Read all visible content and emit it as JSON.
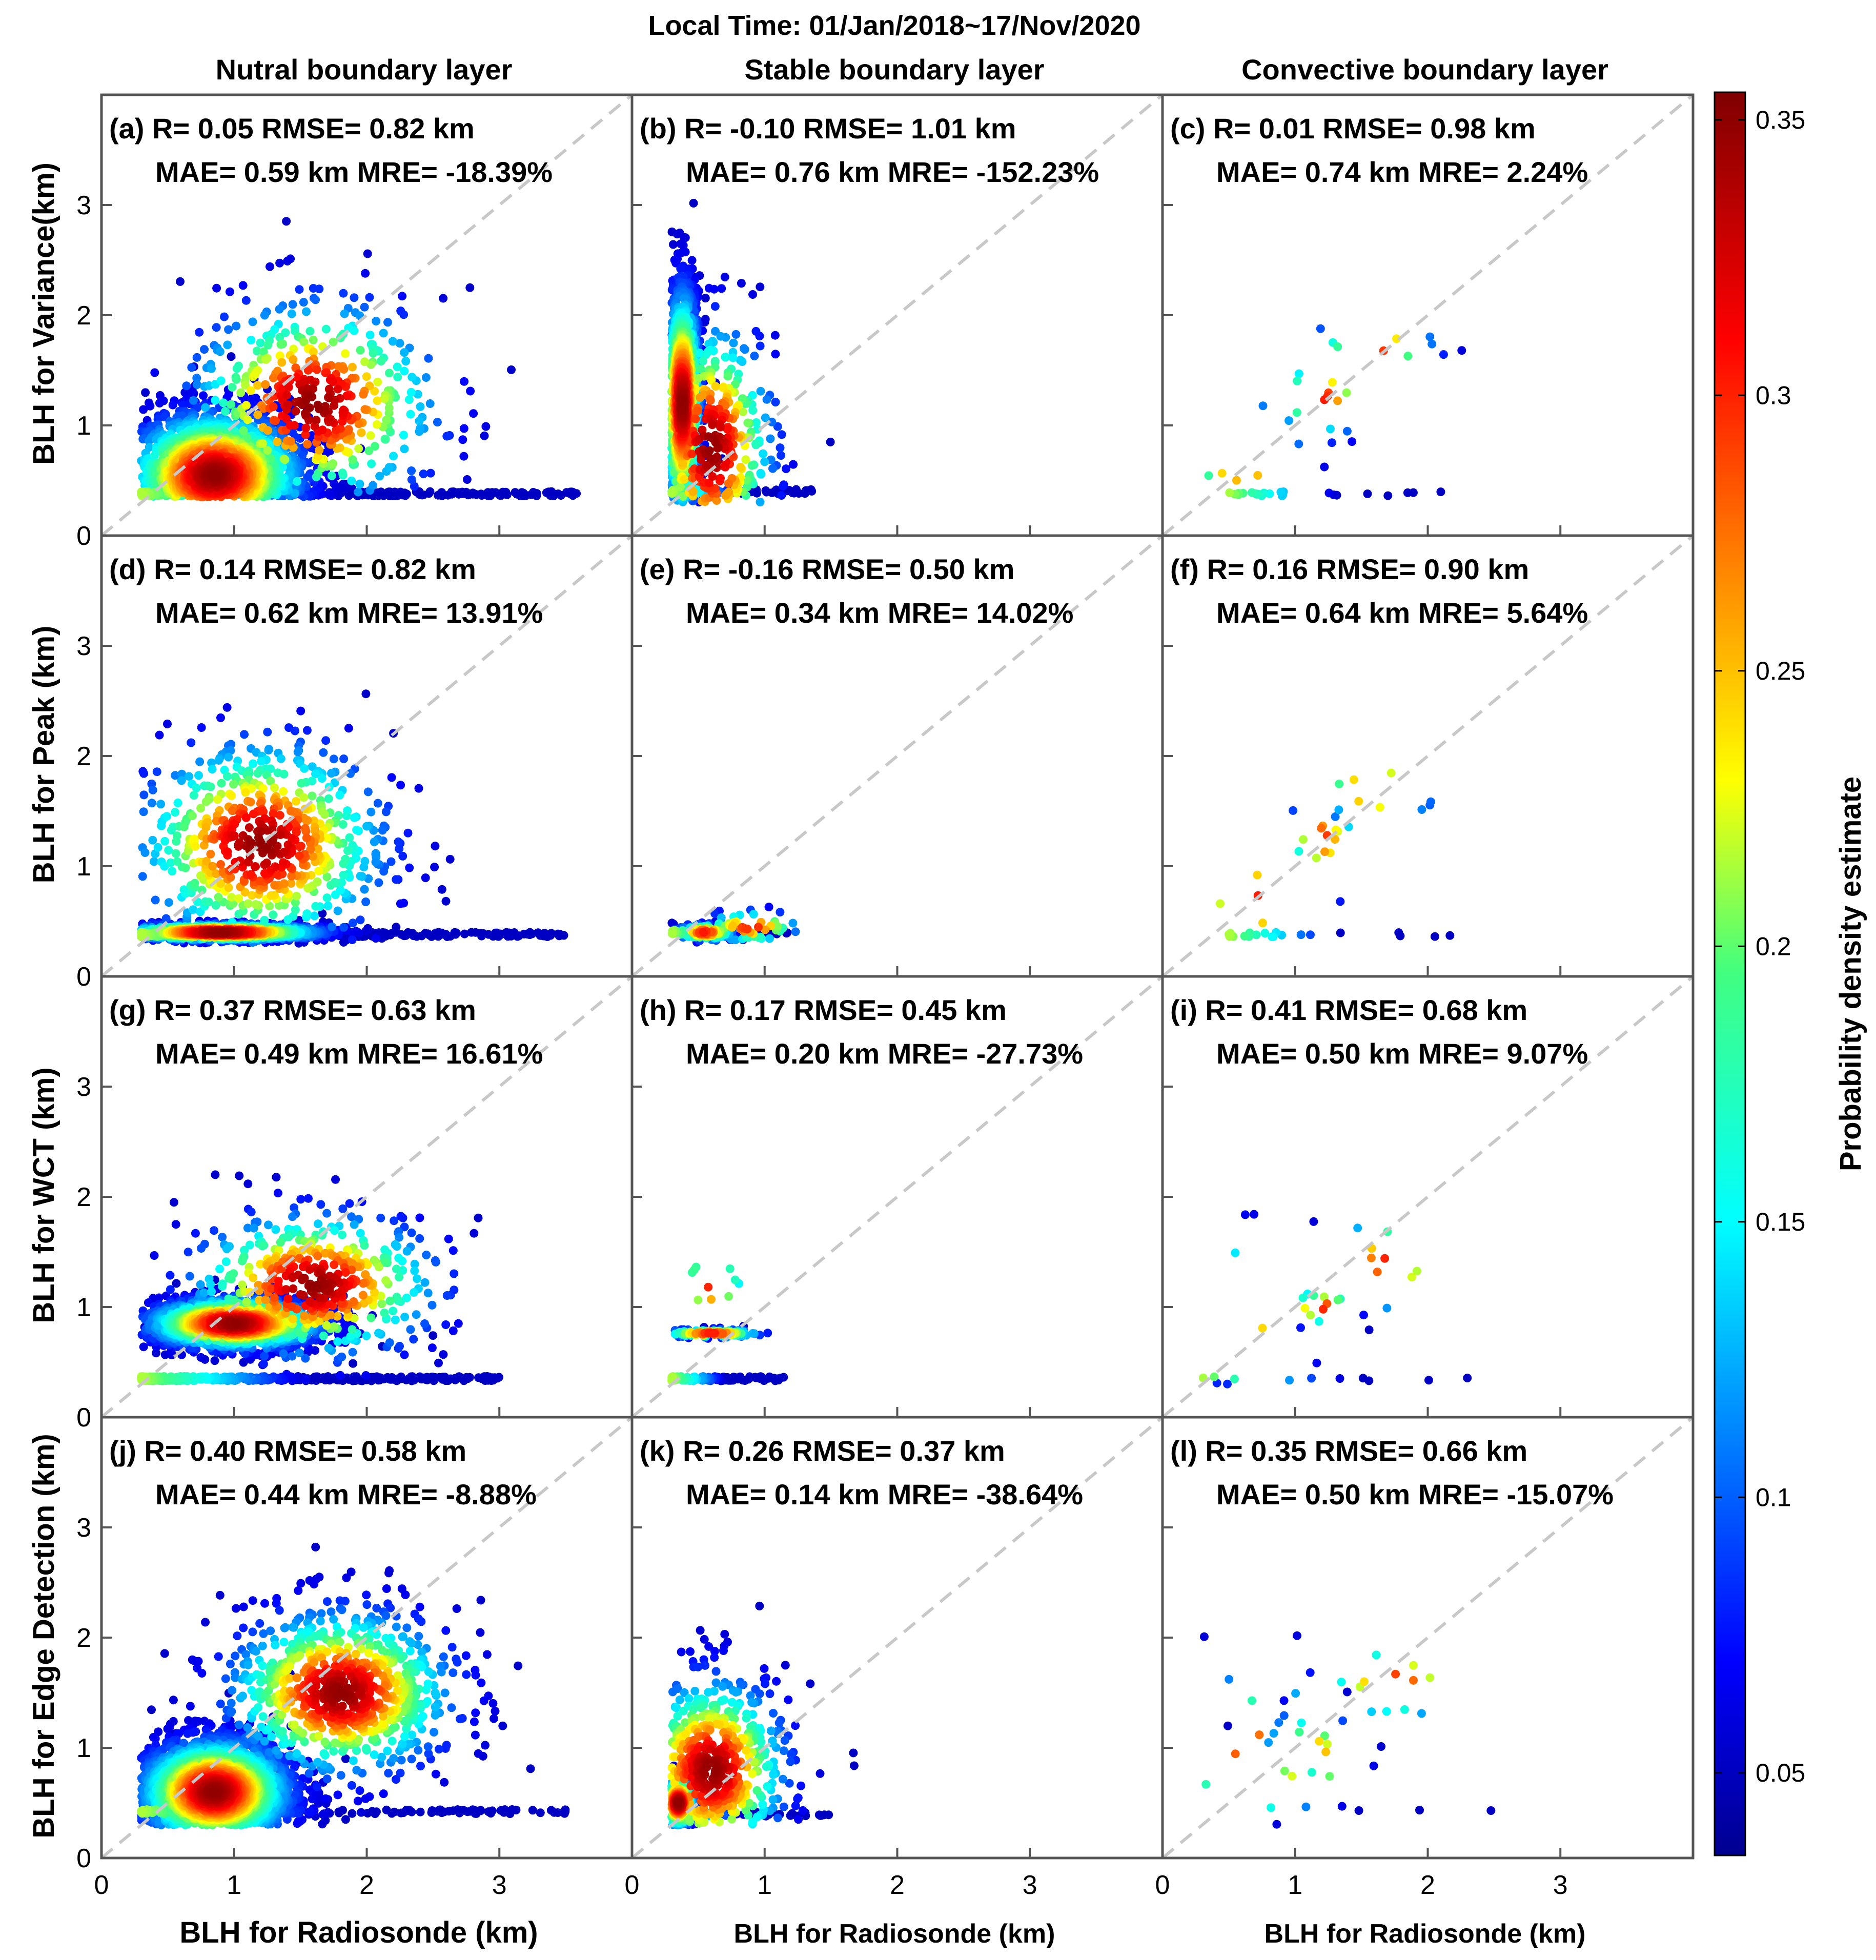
{
  "title": "Local Time: 01/Jan/2018~17/Nov/2020",
  "columns": [
    "Nutral boundary layer",
    "Stable boundary layer",
    "Convective boundary layer"
  ],
  "row_ylabels": [
    "BLH for Variance(km)",
    "BLH for Peak (km)",
    "BLH for WCT (km)",
    "BLH for Edge Detection (km)"
  ],
  "xlabel": "BLH for Radiosonde (km)",
  "colorbar": {
    "label": "Probability density estimate",
    "range": [
      0.035,
      0.355
    ],
    "ticks": [
      "0.05",
      "0.1",
      "0.15",
      "0.2",
      "0.25",
      "0.3",
      "0.35"
    ],
    "colormap": "jet"
  },
  "chart_data": [
    {
      "type": "scatter",
      "panel": "(a)",
      "line1": "R= 0.05  RMSE= 0.82 km",
      "line2": "MAE= 0.59 km MRE= -18.39%",
      "xlim": [
        0,
        4
      ],
      "ylim": [
        0,
        4
      ],
      "xticks": [
        "0",
        "1",
        "2",
        "3"
      ],
      "yticks": [
        "0",
        "1",
        "2",
        "3"
      ],
      "density_clusters": [
        {
          "cx": 0.85,
          "cy": 0.55,
          "sx": 0.35,
          "sy": 0.3,
          "n": 2600
        },
        {
          "cx": 1.6,
          "cy": 1.2,
          "sx": 0.5,
          "sy": 0.5,
          "n": 500
        }
      ],
      "baseline": {
        "y": 0.38,
        "x_from": 0.3,
        "x_to": 3.6,
        "n": 320
      },
      "points_range": {
        "x": [
          0.3,
          3.6
        ],
        "y": [
          0.35,
          3.95
        ]
      }
    },
    {
      "type": "scatter",
      "panel": "(b)",
      "line1": "R= -0.10  RMSE= 1.01 km",
      "line2": "MAE= 0.76 km MRE= -152.23%",
      "xlim": [
        0,
        4
      ],
      "ylim": [
        0,
        4
      ],
      "xticks": [
        "0",
        "1",
        "2",
        "3"
      ],
      "yticks": [],
      "density_clusters": [
        {
          "cx": 0.38,
          "cy": 1.2,
          "sx": 0.07,
          "sy": 0.55,
          "n": 1600
        },
        {
          "cx": 0.6,
          "cy": 0.8,
          "sx": 0.25,
          "sy": 0.6,
          "n": 500
        }
      ],
      "baseline": {
        "y": 0.4,
        "x_from": 0.3,
        "x_to": 1.4,
        "n": 120
      },
      "points_range": {
        "x": [
          0.3,
          2.6
        ],
        "y": [
          0.3,
          3.9
        ]
      }
    },
    {
      "type": "scatter",
      "panel": "(c)",
      "line1": "R= 0.01  RMSE= 0.98 km",
      "line2": "MAE= 0.74 km MRE= 2.24%",
      "xlim": [
        0,
        4
      ],
      "ylim": [
        0,
        4
      ],
      "xticks": [
        "0",
        "1",
        "2",
        "3"
      ],
      "yticks": [],
      "density_clusters": [
        {
          "cx": 1.2,
          "cy": 1.25,
          "sx": 0.2,
          "sy": 0.2,
          "n": 14
        },
        {
          "cx": 1.6,
          "cy": 1.7,
          "sx": 0.25,
          "sy": 0.2,
          "n": 10
        },
        {
          "cx": 0.6,
          "cy": 0.7,
          "sx": 0.25,
          "sy": 0.3,
          "n": 8
        }
      ],
      "baseline": {
        "y": 0.38,
        "x_from": 0.5,
        "x_to": 2.3,
        "n": 24
      },
      "points_range": {
        "x": [
          0.3,
          3.1
        ],
        "y": [
          0.3,
          2.5
        ]
      }
    },
    {
      "type": "scatter",
      "panel": "(d)",
      "line1": "R= 0.14  RMSE= 0.82 km",
      "line2": "MAE= 0.62 km MRE= 13.91%",
      "xlim": [
        0,
        4
      ],
      "ylim": [
        0,
        4
      ],
      "xticks": [
        "0",
        "1",
        "2",
        "3"
      ],
      "yticks": [
        "0",
        "1",
        "2",
        "3"
      ],
      "density_clusters": [
        {
          "cx": 0.9,
          "cy": 0.4,
          "sx": 0.4,
          "sy": 0.04,
          "n": 1200
        },
        {
          "cx": 1.2,
          "cy": 1.2,
          "sx": 0.5,
          "sy": 0.5,
          "n": 700
        }
      ],
      "baseline": {
        "y": 0.38,
        "x_from": 0.3,
        "x_to": 3.5,
        "n": 300
      },
      "points_range": {
        "x": [
          0.3,
          3.5
        ],
        "y": [
          0.3,
          3.0
        ]
      }
    },
    {
      "type": "scatter",
      "panel": "(e)",
      "line1": "R= -0.16  RMSE= 0.50 km",
      "line2": "MAE= 0.34 km MRE= 14.02%",
      "xlim": [
        0,
        4
      ],
      "ylim": [
        0,
        4
      ],
      "xticks": [
        "0",
        "1",
        "2",
        "3"
      ],
      "yticks": [],
      "density_clusters": [
        {
          "cx": 0.55,
          "cy": 0.4,
          "sx": 0.12,
          "sy": 0.04,
          "n": 140
        },
        {
          "cx": 0.9,
          "cy": 0.45,
          "sx": 0.2,
          "sy": 0.08,
          "n": 60
        }
      ],
      "baseline": {
        "y": 0.4,
        "x_from": 0.3,
        "x_to": 1.2,
        "n": 60
      },
      "points_range": {
        "x": [
          0.3,
          1.25
        ],
        "y": [
          0.3,
          3.2
        ]
      }
    },
    {
      "type": "scatter",
      "panel": "(f)",
      "line1": "R= 0.16  RMSE= 0.90 km",
      "line2": "MAE= 0.64 km MRE= 5.64%",
      "xlim": [
        0,
        4
      ],
      "ylim": [
        0,
        4
      ],
      "xticks": [
        "0",
        "1",
        "2",
        "3"
      ],
      "yticks": [],
      "density_clusters": [
        {
          "cx": 1.2,
          "cy": 1.25,
          "sx": 0.15,
          "sy": 0.2,
          "n": 14
        },
        {
          "cx": 1.6,
          "cy": 1.7,
          "sx": 0.25,
          "sy": 0.2,
          "n": 9
        },
        {
          "cx": 0.7,
          "cy": 0.7,
          "sx": 0.3,
          "sy": 0.3,
          "n": 7
        }
      ],
      "baseline": {
        "y": 0.38,
        "x_from": 0.5,
        "x_to": 2.3,
        "n": 20
      },
      "points_range": {
        "x": [
          0.3,
          3.1
        ],
        "y": [
          0.3,
          2.3
        ]
      }
    },
    {
      "type": "scatter",
      "panel": "(g)",
      "line1": "R= 0.37  RMSE= 0.63 km",
      "line2": "MAE= 0.49 km MRE= 16.61%",
      "xlim": [
        0,
        4
      ],
      "ylim": [
        0,
        4
      ],
      "xticks": [
        "0",
        "1",
        "2",
        "3"
      ],
      "yticks": [
        "0",
        "1",
        "2",
        "3"
      ],
      "density_clusters": [
        {
          "cx": 1.0,
          "cy": 0.85,
          "sx": 0.35,
          "sy": 0.12,
          "n": 1500
        },
        {
          "cx": 1.6,
          "cy": 1.2,
          "sx": 0.5,
          "sy": 0.35,
          "n": 500
        }
      ],
      "baseline": {
        "y": 0.35,
        "x_from": 0.3,
        "x_to": 3.0,
        "n": 400
      },
      "points_range": {
        "x": [
          0.3,
          3.5
        ],
        "y": [
          0.3,
          3.1
        ]
      }
    },
    {
      "type": "scatter",
      "panel": "(h)",
      "line1": "R= 0.17  RMSE= 0.45 km",
      "line2": "MAE= 0.20 km MRE= -27.73%",
      "xlim": [
        0,
        4
      ],
      "ylim": [
        0,
        4
      ],
      "xticks": [
        "0",
        "1",
        "2",
        "3"
      ],
      "yticks": [],
      "density_clusters": [
        {
          "cx": 0.6,
          "cy": 0.76,
          "sx": 0.2,
          "sy": 0.02,
          "n": 120
        },
        {
          "cx": 0.6,
          "cy": 1.2,
          "sx": 0.15,
          "sy": 0.2,
          "n": 10
        }
      ],
      "baseline": {
        "y": 0.35,
        "x_from": 0.3,
        "x_to": 1.15,
        "n": 120
      },
      "points_range": {
        "x": [
          0.3,
          1.25
        ],
        "y": [
          0.3,
          1.7
        ]
      }
    },
    {
      "type": "scatter",
      "panel": "(i)",
      "line1": "R= 0.41  RMSE= 0.68 km",
      "line2": "MAE= 0.50 km MRE= 9.07%",
      "xlim": [
        0,
        4
      ],
      "ylim": [
        0,
        4
      ],
      "xticks": [
        "0",
        "1",
        "2",
        "3"
      ],
      "yticks": [],
      "density_clusters": [
        {
          "cx": 1.2,
          "cy": 1.0,
          "sx": 0.15,
          "sy": 0.1,
          "n": 14
        },
        {
          "cx": 1.7,
          "cy": 1.4,
          "sx": 0.25,
          "sy": 0.25,
          "n": 10
        },
        {
          "cx": 0.6,
          "cy": 1.0,
          "sx": 0.3,
          "sy": 0.35,
          "n": 8
        }
      ],
      "baseline": {
        "y": 0.35,
        "x_from": 0.3,
        "x_to": 2.7,
        "n": 10
      },
      "points_range": {
        "x": [
          0.3,
          3.1
        ],
        "y": [
          0.3,
          2.0
        ]
      }
    },
    {
      "type": "scatter",
      "panel": "(j)",
      "line1": "R= 0.40  RMSE= 0.58 km",
      "line2": "MAE= 0.44 km MRE= -8.88%",
      "xlim": [
        0,
        4
      ],
      "ylim": [
        0,
        4
      ],
      "xticks": [
        "0",
        "1",
        "2",
        "3"
      ],
      "yticks": [
        "0",
        "1",
        "2",
        "3"
      ],
      "density_clusters": [
        {
          "cx": 0.85,
          "cy": 0.6,
          "sx": 0.3,
          "sy": 0.25,
          "n": 2800
        },
        {
          "cx": 1.8,
          "cy": 1.5,
          "sx": 0.45,
          "sy": 0.4,
          "n": 900
        }
      ],
      "baseline": {
        "y": 0.42,
        "x_from": 0.3,
        "x_to": 3.5,
        "n": 150
      },
      "points_range": {
        "x": [
          0.3,
          3.5
        ],
        "y": [
          0.3,
          3.35
        ]
      }
    },
    {
      "type": "scatter",
      "panel": "(k)",
      "line1": "R= 0.26  RMSE= 0.37 km",
      "line2": "MAE= 0.14 km MRE= -38.64%",
      "xlim": [
        0,
        4
      ],
      "ylim": [
        0,
        4
      ],
      "xticks": [
        "0",
        "1",
        "2",
        "3"
      ],
      "yticks": [],
      "density_clusters": [
        {
          "cx": 0.35,
          "cy": 0.5,
          "sx": 0.06,
          "sy": 0.12,
          "n": 900
        },
        {
          "cx": 0.6,
          "cy": 0.8,
          "sx": 0.3,
          "sy": 0.45,
          "n": 700
        }
      ],
      "baseline": {
        "y": 0.4,
        "x_from": 0.3,
        "x_to": 1.5,
        "n": 80
      },
      "points_range": {
        "x": [
          0.3,
          2.6
        ],
        "y": [
          0.3,
          2.8
        ]
      }
    },
    {
      "type": "scatter",
      "panel": "(l)",
      "line1": "R= 0.35  RMSE= 0.66 km",
      "line2": "MAE= 0.50 km MRE= -15.07%",
      "xlim": [
        0,
        4
      ],
      "ylim": [
        0,
        4
      ],
      "xticks": [
        "0",
        "1",
        "2",
        "3"
      ],
      "yticks": [],
      "density_clusters": [
        {
          "cx": 1.1,
          "cy": 0.9,
          "sx": 0.2,
          "sy": 0.25,
          "n": 18
        },
        {
          "cx": 1.75,
          "cy": 1.6,
          "sx": 0.3,
          "sy": 0.2,
          "n": 14
        },
        {
          "cx": 0.7,
          "cy": 0.9,
          "sx": 0.35,
          "sy": 0.45,
          "n": 12
        }
      ],
      "baseline": {
        "y": 0.45,
        "x_from": 0.5,
        "x_to": 2.5,
        "n": 6
      },
      "points_range": {
        "x": [
          0.3,
          3.1
        ],
        "y": [
          0.3,
          2.4
        ]
      }
    }
  ]
}
